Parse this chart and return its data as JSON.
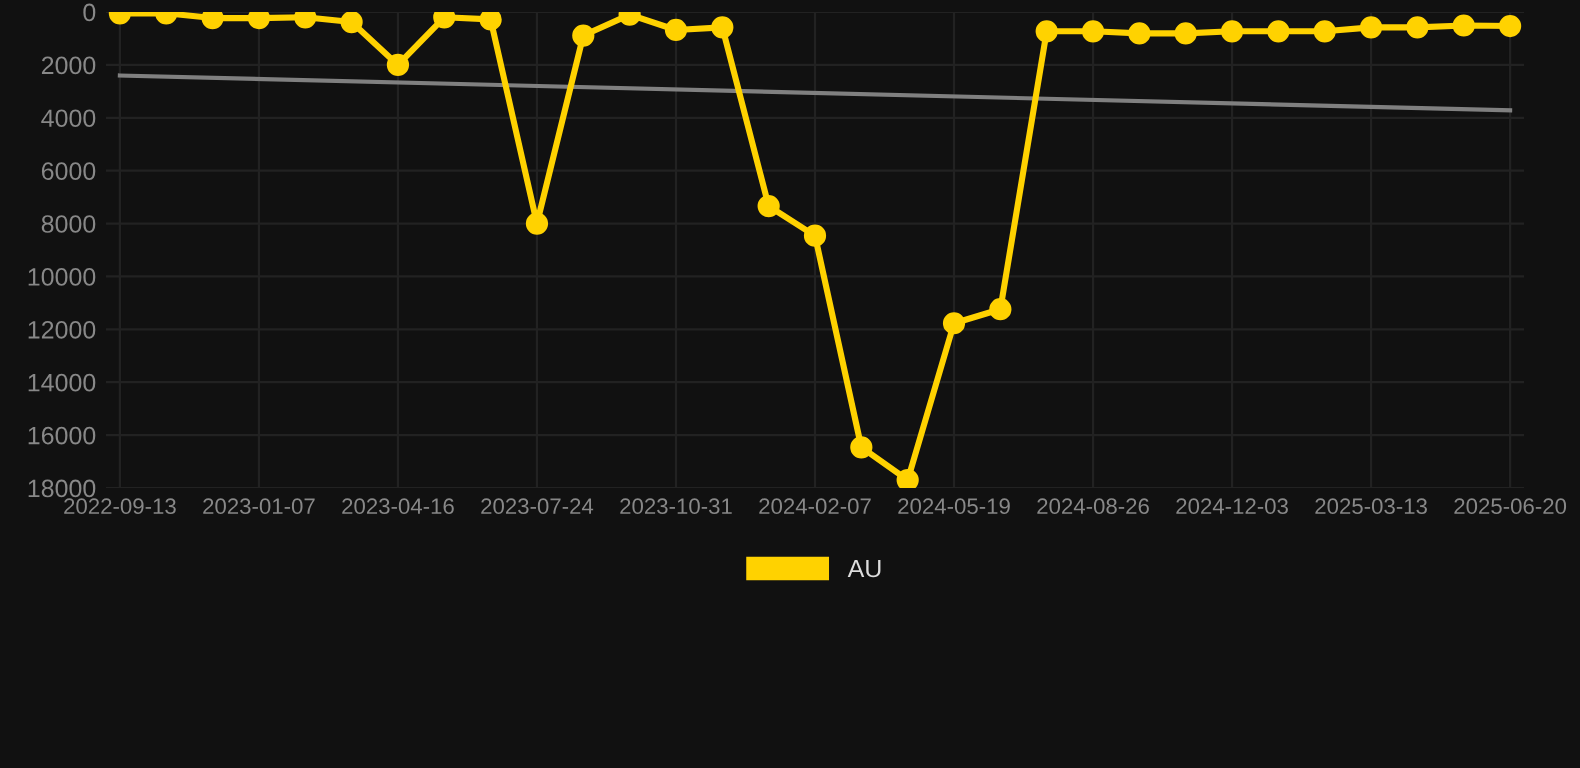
{
  "chart_data": {
    "type": "line",
    "categories": [
      "2022-09-13",
      null,
      null,
      "2023-01-07",
      null,
      null,
      "2023-04-16",
      null,
      null,
      "2023-07-24",
      null,
      null,
      "2023-10-31",
      null,
      null,
      "2024-02-07",
      null,
      null,
      "2024-05-19",
      null,
      null,
      "2024-08-26",
      null,
      null,
      "2024-12-03",
      null,
      null,
      "2025-03-13",
      null,
      null,
      "2025-06-20"
    ],
    "series": [
      {
        "name": "AU",
        "color": "#ffd200",
        "marker": "circle",
        "values": [
          50,
          50,
          230,
          230,
          200,
          380,
          2000,
          200,
          280,
          8000,
          890,
          100,
          680,
          580,
          7340,
          8460,
          16460,
          17700,
          11770,
          11240,
          730,
          730,
          810,
          810,
          730,
          730,
          730,
          580,
          580,
          510,
          530
        ]
      },
      {
        "color": "#808080",
        "marker": "none",
        "values": [
          2400,
          null,
          null,
          null,
          null,
          null,
          null,
          null,
          null,
          null,
          null,
          null,
          null,
          null,
          null,
          null,
          null,
          null,
          null,
          null,
          null,
          null,
          null,
          null,
          null,
          null,
          null,
          null,
          null,
          null,
          3720
        ]
      }
    ],
    "ylim": [
      18000,
      0
    ],
    "yticks": [
      0,
      2000,
      4000,
      6000,
      8000,
      10000,
      12000,
      14000,
      16000,
      18000
    ],
    "grid": true,
    "legend": "bottom"
  }
}
